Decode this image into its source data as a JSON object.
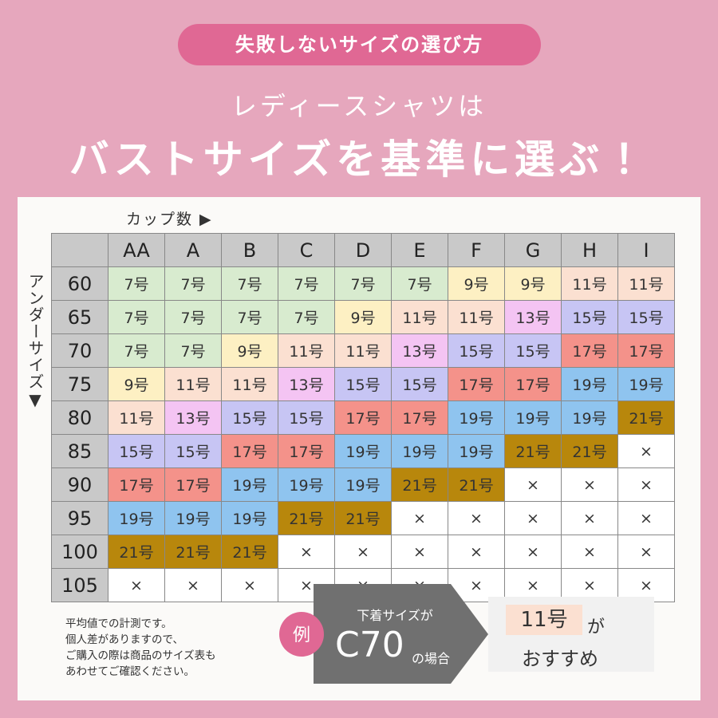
{
  "badge": "失敗しないサイズの選び方",
  "headline": {
    "line1": "レディースシャツは",
    "line2": "バストサイズを基準に選ぶ！"
  },
  "table": {
    "cup_label": "カップ数 ▶",
    "under_label": "アンダーサイズ▼",
    "columns": [
      "AA",
      "A",
      "B",
      "C",
      "D",
      "E",
      "F",
      "G",
      "H",
      "I"
    ],
    "rows": [
      {
        "under": "60",
        "cells": [
          "7号",
          "7号",
          "7号",
          "7号",
          "7号",
          "7号",
          "9号",
          "9号",
          "11号",
          "11号"
        ]
      },
      {
        "under": "65",
        "cells": [
          "7号",
          "7号",
          "7号",
          "7号",
          "9号",
          "11号",
          "11号",
          "13号",
          "15号",
          "15号"
        ]
      },
      {
        "under": "70",
        "cells": [
          "7号",
          "7号",
          "9号",
          "11号",
          "11号",
          "13号",
          "15号",
          "15号",
          "17号",
          "17号"
        ]
      },
      {
        "under": "75",
        "cells": [
          "9号",
          "11号",
          "11号",
          "13号",
          "15号",
          "15号",
          "17号",
          "17号",
          "19号",
          "19号"
        ]
      },
      {
        "under": "80",
        "cells": [
          "11号",
          "13号",
          "15号",
          "15号",
          "17号",
          "17号",
          "19号",
          "19号",
          "19号",
          "21号"
        ]
      },
      {
        "under": "85",
        "cells": [
          "15号",
          "15号",
          "17号",
          "17号",
          "19号",
          "19号",
          "19号",
          "21号",
          "21号",
          "×"
        ]
      },
      {
        "under": "90",
        "cells": [
          "17号",
          "17号",
          "19号",
          "19号",
          "19号",
          "21号",
          "21号",
          "×",
          "×",
          "×"
        ]
      },
      {
        "under": "95",
        "cells": [
          "19号",
          "19号",
          "19号",
          "21号",
          "21号",
          "×",
          "×",
          "×",
          "×",
          "×"
        ]
      },
      {
        "under": "100",
        "cells": [
          "21号",
          "21号",
          "21号",
          "×",
          "×",
          "×",
          "×",
          "×",
          "×",
          "×"
        ]
      },
      {
        "under": "105",
        "cells": [
          "×",
          "×",
          "×",
          "×",
          "×",
          "×",
          "×",
          "×",
          "×",
          "×"
        ]
      }
    ],
    "cell_colors": {
      "7号": "#d8ebcf",
      "9号": "#fdf0c3",
      "11号": "#fbe0d1",
      "13号": "#f4c4f3",
      "15号": "#c7c5f4",
      "17号": "#f4928a",
      "19号": "#8fc4ef",
      "21号": "#b8870c",
      "×": "#ffffff"
    }
  },
  "notes": [
    "平均値での計測です。",
    "個人差がありますので、",
    "ご購入の際は商品のサイズ表も",
    "あわせてご確認ください。"
  ],
  "example": {
    "mark": "例",
    "prefix": "下着サイズが",
    "size": "C70",
    "suffix": "の場合",
    "result": "11号",
    "particle": "が",
    "tail": "おすすめ"
  }
}
